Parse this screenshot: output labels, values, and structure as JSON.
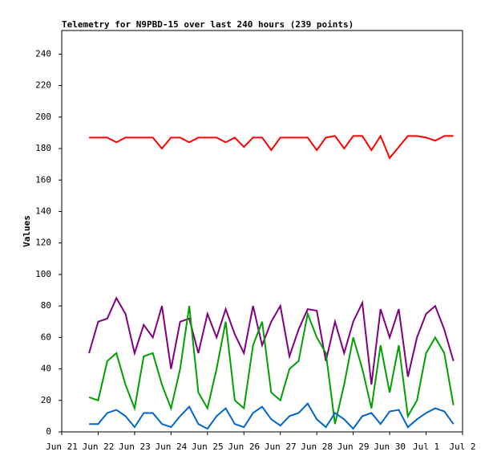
{
  "chart_data": {
    "type": "line",
    "title": "Telemetry for N9PBD-15 over last 240 hours (239 points)",
    "y_label": "Values",
    "x": [
      0.75,
      1.0,
      1.25,
      1.5,
      1.75,
      2.0,
      2.25,
      2.5,
      2.75,
      3.0,
      3.25,
      3.5,
      3.75,
      4.0,
      4.25,
      4.5,
      4.75,
      5.0,
      5.25,
      5.5,
      5.75,
      6.0,
      6.25,
      6.5,
      6.75,
      7.0,
      7.25,
      7.5,
      7.75,
      8.0,
      8.25,
      8.5,
      8.75,
      9.0,
      9.25,
      9.5,
      9.75,
      10.0,
      10.25,
      10.5,
      10.75
    ],
    "series": [
      {
        "color": "#ff0000",
        "values": [
          187,
          187,
          187,
          184,
          187,
          187,
          187,
          187,
          180,
          187,
          187,
          184,
          187,
          187,
          187,
          184,
          187,
          181,
          187,
          187,
          179,
          187,
          187,
          187,
          187,
          179,
          187,
          188,
          180,
          188,
          188,
          179,
          188,
          174,
          181,
          188,
          188,
          187,
          185,
          188,
          188
        ]
      },
      {
        "color": "#800080",
        "values": [
          50,
          70,
          72,
          85,
          75,
          50,
          68,
          60,
          80,
          40,
          70,
          72,
          50,
          75,
          60,
          78,
          62,
          50,
          80,
          55,
          70,
          80,
          48,
          65,
          78,
          77,
          45,
          70,
          50,
          70,
          82,
          30,
          78,
          60,
          78,
          35,
          60,
          75,
          80,
          65,
          45
        ]
      },
      {
        "color": "#00a000",
        "values": [
          22,
          20,
          45,
          50,
          30,
          15,
          48,
          50,
          30,
          15,
          40,
          80,
          25,
          15,
          40,
          70,
          20,
          15,
          55,
          70,
          25,
          20,
          40,
          45,
          75,
          60,
          50,
          5,
          30,
          60,
          40,
          15,
          55,
          25,
          55,
          10,
          20,
          50,
          60,
          50,
          17
        ]
      },
      {
        "color": "#0066cc",
        "values": [
          5,
          5,
          12,
          14,
          10,
          3,
          12,
          12,
          5,
          3,
          10,
          16,
          5,
          2,
          10,
          15,
          5,
          3,
          12,
          16,
          8,
          4,
          10,
          12,
          18,
          8,
          3,
          12,
          8,
          2,
          10,
          12,
          5,
          13,
          14,
          3,
          8,
          12,
          15,
          13,
          5
        ]
      }
    ],
    "xlim": [
      0,
      11
    ],
    "xticks": [
      {
        "value": 0,
        "label": "Jun 21"
      },
      {
        "value": 1,
        "label": "Jun 22"
      },
      {
        "value": 2,
        "label": "Jun 23"
      },
      {
        "value": 3,
        "label": "Jun 24"
      },
      {
        "value": 4,
        "label": "Jun 25"
      },
      {
        "value": 5,
        "label": "Jun 26"
      },
      {
        "value": 6,
        "label": "Jun 27"
      },
      {
        "value": 7,
        "label": "Jun 28"
      },
      {
        "value": 8,
        "label": "Jun 29"
      },
      {
        "value": 9,
        "label": "Jun 30"
      },
      {
        "value": 10,
        "label": "Jul 1"
      },
      {
        "value": 11,
        "label": "Jul 2"
      }
    ],
    "ylim": [
      0,
      255
    ],
    "yticks": [
      0,
      20,
      40,
      60,
      80,
      100,
      120,
      140,
      160,
      180,
      200,
      220,
      240
    ]
  }
}
